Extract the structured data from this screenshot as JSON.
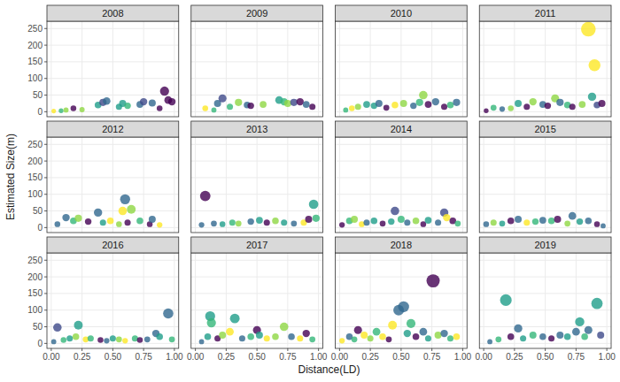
{
  "chart_data": {
    "type": "scatter",
    "x_label": "Distance(LD)",
    "y_label": "Estimated Size(m)",
    "xlim": [
      -0.035,
      1.035
    ],
    "ylim": [
      -15,
      272
    ],
    "xticks": [
      {
        "value": 0,
        "label": "0.00"
      },
      {
        "value": 0.25,
        "label": "0.25"
      },
      {
        "value": 0.5,
        "label": "0.50"
      },
      {
        "value": 0.75,
        "label": "0.75"
      },
      {
        "value": 1,
        "label": "1.00"
      }
    ],
    "yticks": [
      0,
      50,
      100,
      150,
      200,
      250
    ],
    "grid": true,
    "series": [
      {
        "name": "2008",
        "x": [
          0.02,
          0.08,
          0.12,
          0.18,
          0.25,
          0.38,
          0.42,
          0.45,
          0.55,
          0.58,
          0.62,
          0.72,
          0.75,
          0.82,
          0.88,
          0.92,
          0.95,
          0.98
        ],
        "values": [
          2,
          3,
          5,
          10,
          6,
          20,
          28,
          32,
          15,
          25,
          18,
          22,
          30,
          26,
          10,
          62,
          35,
          30
        ],
        "colors": [
          "#fde725",
          "#35b779",
          "#8fd744",
          "#440154",
          "#8fd744",
          "#1f9e89",
          "#3e4a89",
          "#31688e",
          "#1f9e89",
          "#1f9e89",
          "#35b779",
          "#31688e",
          "#3e4a89",
          "#31688e",
          "#440154",
          "#440154",
          "#440154",
          "#440154"
        ]
      },
      {
        "name": "2009",
        "x": [
          0.08,
          0.15,
          0.18,
          0.22,
          0.28,
          0.35,
          0.42,
          0.45,
          0.55,
          0.68,
          0.72,
          0.75,
          0.8,
          0.85,
          0.9,
          0.95
        ],
        "values": [
          10,
          5,
          25,
          40,
          15,
          28,
          20,
          18,
          22,
          35,
          30,
          25,
          28,
          30,
          22,
          15
        ],
        "colors": [
          "#fde725",
          "#35b779",
          "#31688e",
          "#3e4a89",
          "#35b779",
          "#8fd744",
          "#31688e",
          "#440154",
          "#8fd744",
          "#1f9e89",
          "#35b779",
          "#8fd744",
          "#3e4a89",
          "#440154",
          "#31688e",
          "#440154"
        ]
      },
      {
        "name": "2010",
        "x": [
          0.05,
          0.1,
          0.15,
          0.22,
          0.28,
          0.32,
          0.38,
          0.45,
          0.52,
          0.6,
          0.65,
          0.68,
          0.72,
          0.78,
          0.85,
          0.9,
          0.95
        ],
        "values": [
          5,
          10,
          15,
          22,
          18,
          25,
          12,
          20,
          25,
          18,
          28,
          50,
          22,
          30,
          15,
          20,
          28
        ],
        "colors": [
          "#35b779",
          "#fde725",
          "#8fd744",
          "#1f9e89",
          "#1f9e89",
          "#31688e",
          "#440154",
          "#fde725",
          "#8fd744",
          "#31688e",
          "#35b779",
          "#8fd744",
          "#440154",
          "#31688e",
          "#440154",
          "#35b779",
          "#31688e"
        ]
      },
      {
        "name": "2011",
        "x": [
          0.02,
          0.08,
          0.15,
          0.22,
          0.28,
          0.35,
          0.4,
          0.48,
          0.52,
          0.58,
          0.62,
          0.68,
          0.72,
          0.8,
          0.85,
          0.88,
          0.9,
          0.92,
          0.96
        ],
        "values": [
          3,
          12,
          8,
          10,
          25,
          15,
          30,
          22,
          18,
          40,
          28,
          20,
          15,
          22,
          248,
          45,
          140,
          20,
          25
        ],
        "colors": [
          "#440154",
          "#35b779",
          "#31688e",
          "#8fd744",
          "#1f9e89",
          "#440154",
          "#8fd744",
          "#31688e",
          "#440154",
          "#8fd744",
          "#31688e",
          "#35b779",
          "#440154",
          "#8fd744",
          "#fde725",
          "#1f9e89",
          "#fde725",
          "#3e4a89",
          "#440154"
        ]
      },
      {
        "name": "2012",
        "x": [
          0.05,
          0.12,
          0.18,
          0.22,
          0.3,
          0.38,
          0.42,
          0.48,
          0.55,
          0.58,
          0.6,
          0.62,
          0.65,
          0.72,
          0.8,
          0.82,
          0.88
        ],
        "values": [
          10,
          30,
          20,
          28,
          18,
          45,
          15,
          20,
          10,
          50,
          85,
          15,
          55,
          20,
          10,
          25,
          8
        ],
        "colors": [
          "#31688e",
          "#31688e",
          "#35b779",
          "#8fd744",
          "#440154",
          "#31688e",
          "#1f9e89",
          "#fde725",
          "#8fd744",
          "#fde725",
          "#31688e",
          "#440154",
          "#8fd744",
          "#35b779",
          "#440154",
          "#31688e",
          "#fde725"
        ]
      },
      {
        "name": "2013",
        "x": [
          0.05,
          0.08,
          0.15,
          0.22,
          0.3,
          0.35,
          0.45,
          0.52,
          0.58,
          0.65,
          0.72,
          0.8,
          0.88,
          0.92,
          0.96,
          0.98
        ],
        "values": [
          8,
          95,
          12,
          10,
          15,
          12,
          18,
          22,
          15,
          20,
          15,
          12,
          15,
          25,
          70,
          28
        ],
        "colors": [
          "#31688e",
          "#440154",
          "#31688e",
          "#1f9e89",
          "#35b779",
          "#8fd744",
          "#31688e",
          "#1f9e89",
          "#440154",
          "#8fd744",
          "#1f9e89",
          "#31688e",
          "#fde725",
          "#440154",
          "#1f9e89",
          "#35b779"
        ]
      },
      {
        "name": "2014",
        "x": [
          0.02,
          0.08,
          0.12,
          0.18,
          0.22,
          0.28,
          0.35,
          0.42,
          0.45,
          0.5,
          0.55,
          0.62,
          0.68,
          0.72,
          0.8,
          0.85,
          0.87,
          0.92,
          0.96
        ],
        "values": [
          8,
          20,
          25,
          10,
          15,
          20,
          12,
          18,
          50,
          25,
          15,
          20,
          10,
          22,
          15,
          45,
          30,
          20,
          12
        ],
        "colors": [
          "#440154",
          "#35b779",
          "#8fd744",
          "#fde725",
          "#31688e",
          "#1f9e89",
          "#440154",
          "#1f9e89",
          "#3e4a89",
          "#35b779",
          "#31688e",
          "#8fd744",
          "#440154",
          "#1f9e89",
          "#31688e",
          "#3e4a89",
          "#fde725",
          "#440154",
          "#35b779"
        ]
      },
      {
        "name": "2015",
        "x": [
          0.02,
          0.08,
          0.15,
          0.22,
          0.28,
          0.35,
          0.42,
          0.48,
          0.55,
          0.6,
          0.68,
          0.72,
          0.78,
          0.85,
          0.92,
          0.97
        ],
        "values": [
          10,
          15,
          12,
          20,
          25,
          15,
          18,
          22,
          20,
          25,
          12,
          35,
          18,
          20,
          10,
          5
        ],
        "colors": [
          "#31688e",
          "#8fd744",
          "#1f9e89",
          "#440154",
          "#31688e",
          "#fde725",
          "#35b779",
          "#31688e",
          "#35b779",
          "#440154",
          "#8fd744",
          "#31688e",
          "#1f9e89",
          "#31688e",
          "#440154",
          "#31688e"
        ]
      },
      {
        "name": "2016",
        "x": [
          0.02,
          0.05,
          0.1,
          0.15,
          0.2,
          0.22,
          0.28,
          0.32,
          0.4,
          0.45,
          0.5,
          0.55,
          0.6,
          0.68,
          0.72,
          0.78,
          0.85,
          0.88,
          0.95,
          0.98
        ],
        "values": [
          5,
          48,
          10,
          15,
          20,
          55,
          12,
          15,
          10,
          8,
          15,
          12,
          8,
          15,
          10,
          12,
          30,
          20,
          90,
          12
        ],
        "colors": [
          "#31688e",
          "#3e4a89",
          "#35b779",
          "#1f9e89",
          "#8fd744",
          "#1f9e89",
          "#fde725",
          "#35b779",
          "#440154",
          "#31688e",
          "#1f9e89",
          "#8fd744",
          "#fde725",
          "#35b779",
          "#440154",
          "#31688e",
          "#31688e",
          "#1f9e89",
          "#31688e",
          "#35b779"
        ]
      },
      {
        "name": "2017",
        "x": [
          0.05,
          0.1,
          0.12,
          0.13,
          0.18,
          0.22,
          0.28,
          0.32,
          0.38,
          0.45,
          0.5,
          0.52,
          0.58,
          0.65,
          0.72,
          0.78,
          0.85,
          0.9,
          0.95
        ],
        "values": [
          5,
          20,
          82,
          62,
          15,
          25,
          35,
          75,
          15,
          20,
          40,
          25,
          15,
          20,
          50,
          20,
          15,
          30,
          12
        ],
        "colors": [
          "#31688e",
          "#1f9e89",
          "#1f9e89",
          "#35b779",
          "#440154",
          "#8fd744",
          "#fde725",
          "#1f9e89",
          "#31688e",
          "#35b779",
          "#440154",
          "#1f9e89",
          "#fde725",
          "#8fd744",
          "#8fd744",
          "#31688e",
          "#fde725",
          "#440154",
          "#35b779"
        ]
      },
      {
        "name": "2018",
        "x": [
          0.02,
          0.08,
          0.12,
          0.15,
          0.2,
          0.25,
          0.3,
          0.35,
          0.4,
          0.43,
          0.48,
          0.52,
          0.55,
          0.58,
          0.62,
          0.68,
          0.72,
          0.76,
          0.8,
          0.85,
          0.9,
          0.95
        ],
        "values": [
          8,
          20,
          12,
          40,
          25,
          15,
          35,
          20,
          12,
          55,
          100,
          110,
          30,
          60,
          20,
          35,
          15,
          188,
          25,
          30,
          15,
          20
        ],
        "colors": [
          "#fde725",
          "#31688e",
          "#35b779",
          "#440154",
          "#fde725",
          "#8fd744",
          "#35b779",
          "#fde725",
          "#440154",
          "#fde725",
          "#31688e",
          "#31688e",
          "#1f9e89",
          "#35b779",
          "#440154",
          "#31688e",
          "#1f9e89",
          "#440154",
          "#8fd744",
          "#31688e",
          "#35b779",
          "#fde725"
        ]
      },
      {
        "name": "2019",
        "x": [
          0.05,
          0.12,
          0.18,
          0.22,
          0.28,
          0.32,
          0.4,
          0.48,
          0.55,
          0.62,
          0.68,
          0.75,
          0.78,
          0.82,
          0.85,
          0.92,
          0.95
        ],
        "values": [
          5,
          12,
          130,
          20,
          45,
          15,
          25,
          20,
          15,
          25,
          20,
          35,
          65,
          20,
          40,
          120,
          25
        ],
        "colors": [
          "#31688e",
          "#35b779",
          "#1f9e89",
          "#440154",
          "#31688e",
          "#1f9e89",
          "#35b779",
          "#31688e",
          "#440154",
          "#31688e",
          "#1f9e89",
          "#31688e",
          "#1f9e89",
          "#35b779",
          "#31688e",
          "#1f9e89",
          "#3e4a89"
        ]
      }
    ]
  }
}
